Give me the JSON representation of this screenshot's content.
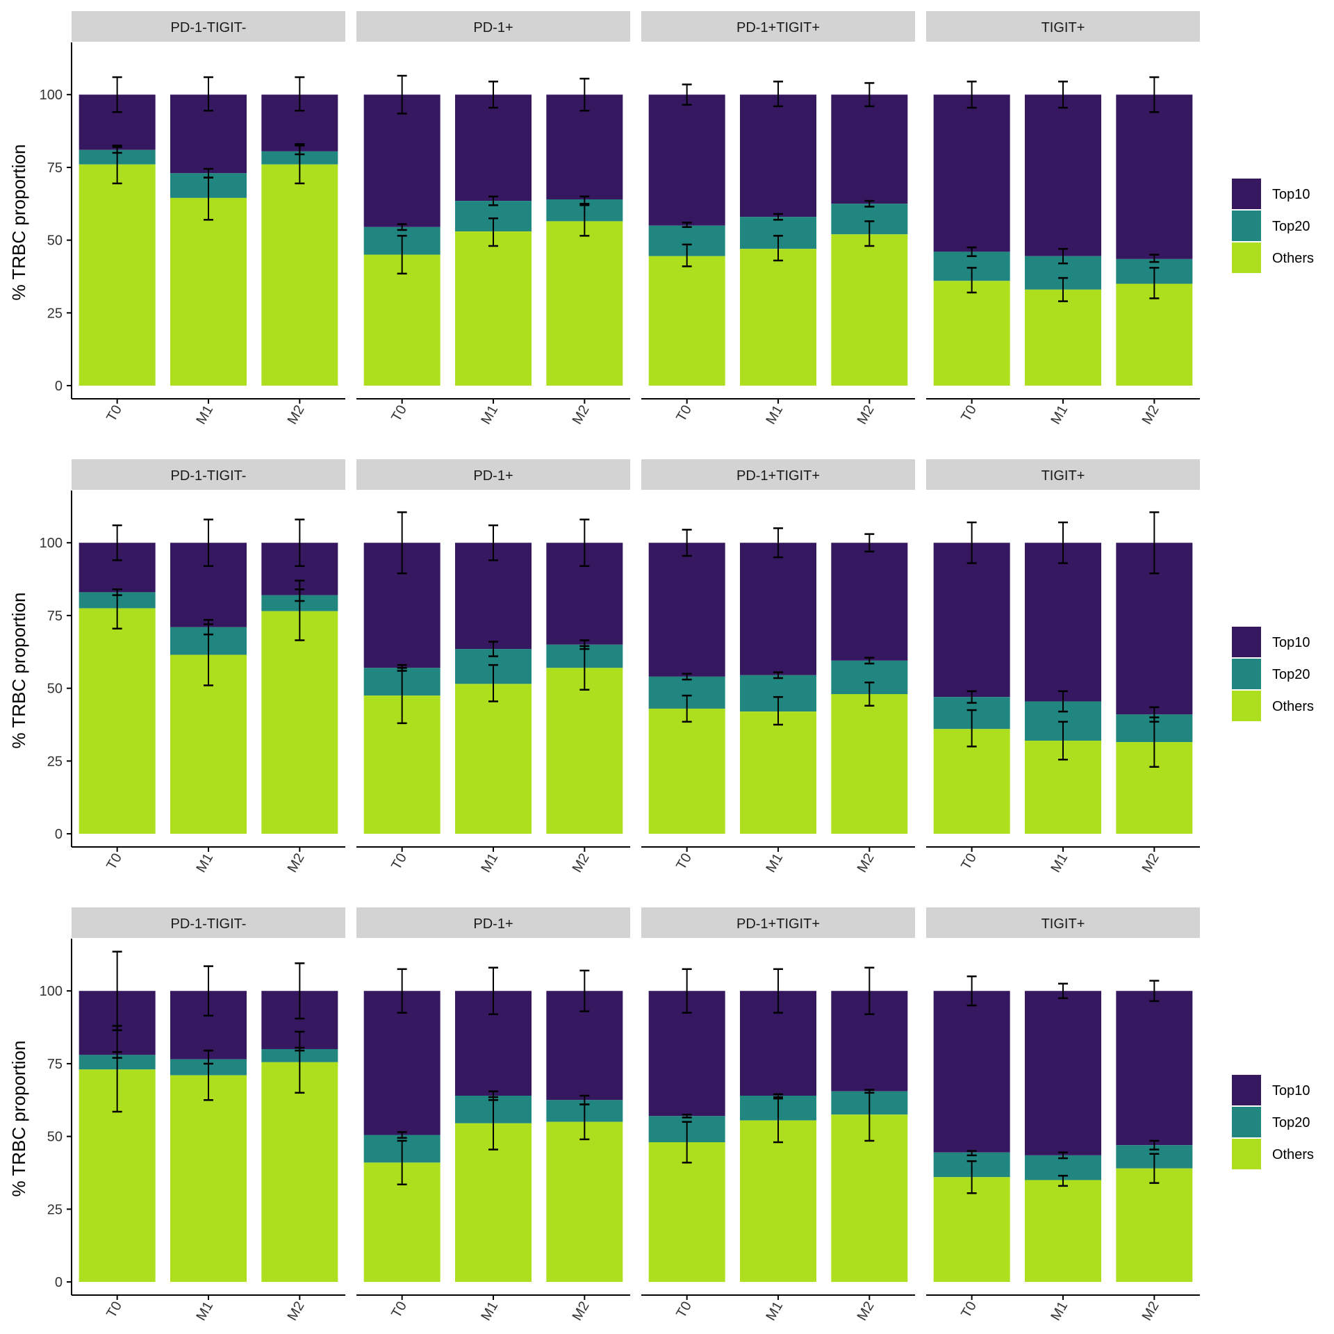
{
  "colors": {
    "Top10": "#35185f",
    "Top20": "#218580",
    "Others": "#aedf1e",
    "strip_bg": "#d3d3d3",
    "axis": "#000000",
    "errorbar": "#000000"
  },
  "legend": {
    "items": [
      "Top10",
      "Top20",
      "Others"
    ],
    "placement": "right"
  },
  "chart_data": [
    {
      "type": "bar",
      "stacked": true,
      "ylabel": "% TRBC proportion",
      "yticks": [
        0,
        25,
        50,
        75,
        100
      ],
      "ylim": [
        -5,
        117
      ],
      "categories": [
        "T0",
        "M1",
        "M2"
      ],
      "facets": [
        {
          "title": "PD-1-TIGIT-",
          "bars": [
            {
              "others": 76,
              "top20": 81,
              "err_top10": [
                94,
                106
              ],
              "err_top20": [
                80,
                82.5
              ],
              "err_others": [
                69.5,
                82
              ]
            },
            {
              "others": 64.5,
              "top20": 73,
              "err_top10": [
                94.5,
                106
              ],
              "err_top20": [
                71.5,
                74.5
              ],
              "err_others": [
                57,
                71.5
              ]
            },
            {
              "others": 76,
              "top20": 80.5,
              "err_top10": [
                94.5,
                106
              ],
              "err_top20": [
                79.5,
                83
              ],
              "err_others": [
                69.5,
                82.5
              ]
            }
          ]
        },
        {
          "title": "PD-1+",
          "bars": [
            {
              "others": 45,
              "top20": 54.5,
              "err_top10": [
                93.5,
                106.5
              ],
              "err_top20": [
                53.5,
                55.5
              ],
              "err_others": [
                38.5,
                51.5
              ]
            },
            {
              "others": 53,
              "top20": 63.5,
              "err_top10": [
                95.5,
                104.5
              ],
              "err_top20": [
                62,
                65
              ],
              "err_others": [
                48,
                57.5
              ]
            },
            {
              "others": 56.5,
              "top20": 64,
              "err_top10": [
                94.5,
                105.5
              ],
              "err_top20": [
                62.5,
                65
              ],
              "err_others": [
                51.5,
                62
              ]
            }
          ]
        },
        {
          "title": "PD-1+TIGIT+",
          "bars": [
            {
              "others": 44.5,
              "top20": 55,
              "err_top10": [
                96.5,
                103.5
              ],
              "err_top20": [
                54.5,
                56
              ],
              "err_others": [
                41,
                48.5
              ]
            },
            {
              "others": 47,
              "top20": 58,
              "err_top10": [
                96,
                104.5
              ],
              "err_top20": [
                57,
                59
              ],
              "err_others": [
                43,
                51.5
              ]
            },
            {
              "others": 52,
              "top20": 62.5,
              "err_top10": [
                96,
                104
              ],
              "err_top20": [
                61.5,
                63.5
              ],
              "err_others": [
                48,
                56.5
              ]
            }
          ]
        },
        {
          "title": "TIGIT+",
          "bars": [
            {
              "others": 36,
              "top20": 46,
              "err_top10": [
                95.5,
                104.5
              ],
              "err_top20": [
                44.5,
                47.5
              ],
              "err_others": [
                32,
                40.5
              ]
            },
            {
              "others": 33,
              "top20": 44.5,
              "err_top10": [
                95.5,
                104.5
              ],
              "err_top20": [
                42,
                47
              ],
              "err_others": [
                29,
                37
              ]
            },
            {
              "others": 35,
              "top20": 43.5,
              "err_top10": [
                94,
                106
              ],
              "err_top20": [
                42.5,
                45
              ],
              "err_others": [
                30,
                40.5
              ]
            }
          ]
        }
      ]
    },
    {
      "type": "bar",
      "stacked": true,
      "ylabel": "% TRBC proportion",
      "yticks": [
        0,
        25,
        50,
        75,
        100
      ],
      "ylim": [
        -5,
        117
      ],
      "categories": [
        "T0",
        "M1",
        "M2"
      ],
      "facets": [
        {
          "title": "PD-1-TIGIT-",
          "bars": [
            {
              "others": 77.5,
              "top20": 83,
              "err_top10": [
                94,
                106
              ],
              "err_top20": [
                82,
                84
              ],
              "err_others": [
                70.5,
                84
              ]
            },
            {
              "others": 61.5,
              "top20": 71,
              "err_top10": [
                92,
                108
              ],
              "err_top20": [
                68.5,
                73.5
              ],
              "err_others": [
                51,
                72
              ]
            },
            {
              "others": 76.5,
              "top20": 82,
              "err_top10": [
                92,
                108
              ],
              "err_top20": [
                80,
                84
              ],
              "err_others": [
                66.5,
                87
              ]
            }
          ]
        },
        {
          "title": "PD-1+",
          "bars": [
            {
              "others": 47.5,
              "top20": 57,
              "err_top10": [
                89.5,
                110.5
              ],
              "err_top20": [
                56,
                58
              ],
              "err_others": [
                38,
                57
              ]
            },
            {
              "others": 51.5,
              "top20": 63.5,
              "err_top10": [
                94,
                106
              ],
              "err_top20": [
                61,
                66
              ],
              "err_others": [
                45.5,
                58
              ]
            },
            {
              "others": 57,
              "top20": 65,
              "err_top10": [
                92,
                108
              ],
              "err_top20": [
                63.5,
                66.5
              ],
              "err_others": [
                49.5,
                64.5
              ]
            }
          ]
        },
        {
          "title": "PD-1+TIGIT+",
          "bars": [
            {
              "others": 43,
              "top20": 54,
              "err_top10": [
                95.5,
                104.5
              ],
              "err_top20": [
                53,
                55
              ],
              "err_others": [
                38.5,
                47.5
              ]
            },
            {
              "others": 42,
              "top20": 54.5,
              "err_top10": [
                95,
                105
              ],
              "err_top20": [
                53.5,
                55.5
              ],
              "err_others": [
                37.5,
                47
              ]
            },
            {
              "others": 48,
              "top20": 59.5,
              "err_top10": [
                97,
                103
              ],
              "err_top20": [
                58.5,
                60.5
              ],
              "err_others": [
                44,
                52
              ]
            }
          ]
        },
        {
          "title": "TIGIT+",
          "bars": [
            {
              "others": 36,
              "top20": 47,
              "err_top10": [
                93,
                107
              ],
              "err_top20": [
                45,
                49
              ],
              "err_others": [
                30,
                42.5
              ]
            },
            {
              "others": 32,
              "top20": 45.5,
              "err_top10": [
                93,
                107
              ],
              "err_top20": [
                42,
                49
              ],
              "err_others": [
                25.5,
                38.5
              ]
            },
            {
              "others": 31.5,
              "top20": 41,
              "err_top10": [
                89.5,
                110.5
              ],
              "err_top20": [
                38.5,
                43.5
              ],
              "err_others": [
                23,
                40
              ]
            }
          ]
        }
      ]
    },
    {
      "type": "bar",
      "stacked": true,
      "ylabel": "% TRBC proportion",
      "yticks": [
        0,
        25,
        50,
        75,
        100
      ],
      "ylim": [
        -5,
        117
      ],
      "categories": [
        "T0",
        "M1",
        "M2"
      ],
      "facets": [
        {
          "title": "PD-1-TIGIT-",
          "bars": [
            {
              "others": 73,
              "top20": 78,
              "err_top10": [
                86.5,
                113.5
              ],
              "err_top20": [
                77,
                79
              ],
              "err_others": [
                58.5,
                88
              ]
            },
            {
              "others": 71,
              "top20": 76.5,
              "err_top10": [
                91.5,
                108.5
              ],
              "err_top20": [
                75,
                79.5
              ],
              "err_others": [
                62.5,
                79.5
              ]
            },
            {
              "others": 75.5,
              "top20": 80,
              "err_top10": [
                90.5,
                109.5
              ],
              "err_top20": [
                79.5,
                80.5
              ],
              "err_others": [
                65,
                86
              ]
            }
          ]
        },
        {
          "title": "PD-1+",
          "bars": [
            {
              "others": 41,
              "top20": 50.5,
              "err_top10": [
                92.5,
                107.5
              ],
              "err_top20": [
                49.5,
                51.5
              ],
              "err_others": [
                33.5,
                48.5
              ]
            },
            {
              "others": 54.5,
              "top20": 64,
              "err_top10": [
                92,
                108
              ],
              "err_top20": [
                62.5,
                65.5
              ],
              "err_others": [
                45.5,
                63.5
              ]
            },
            {
              "others": 55,
              "top20": 62.5,
              "err_top10": [
                93,
                107
              ],
              "err_top20": [
                61,
                64
              ],
              "err_others": [
                49,
                61
              ]
            }
          ]
        },
        {
          "title": "PD-1+TIGIT+",
          "bars": [
            {
              "others": 48,
              "top20": 57,
              "err_top10": [
                92.5,
                107.5
              ],
              "err_top20": [
                56.5,
                57.5
              ],
              "err_others": [
                41,
                55
              ]
            },
            {
              "others": 55.5,
              "top20": 64,
              "err_top10": [
                92.5,
                107.5
              ],
              "err_top20": [
                63.5,
                64.5
              ],
              "err_others": [
                48,
                63
              ]
            },
            {
              "others": 57.5,
              "top20": 65.5,
              "err_top10": [
                92,
                108
              ],
              "err_top20": [
                65,
                66
              ],
              "err_others": [
                48.5,
                66
              ]
            }
          ]
        },
        {
          "title": "TIGIT+",
          "bars": [
            {
              "others": 36,
              "top20": 44.5,
              "err_top10": [
                95,
                105
              ],
              "err_top20": [
                43.5,
                45
              ],
              "err_others": [
                30.5,
                41.5
              ]
            },
            {
              "others": 35,
              "top20": 43.5,
              "err_top10": [
                97.5,
                102.5
              ],
              "err_top20": [
                42.5,
                44.5
              ],
              "err_others": [
                33,
                36.5
              ]
            },
            {
              "others": 39,
              "top20": 47,
              "err_top10": [
                96.5,
                103.5
              ],
              "err_top20": [
                45.5,
                48.5
              ],
              "err_others": [
                34,
                44
              ]
            }
          ]
        }
      ]
    }
  ]
}
